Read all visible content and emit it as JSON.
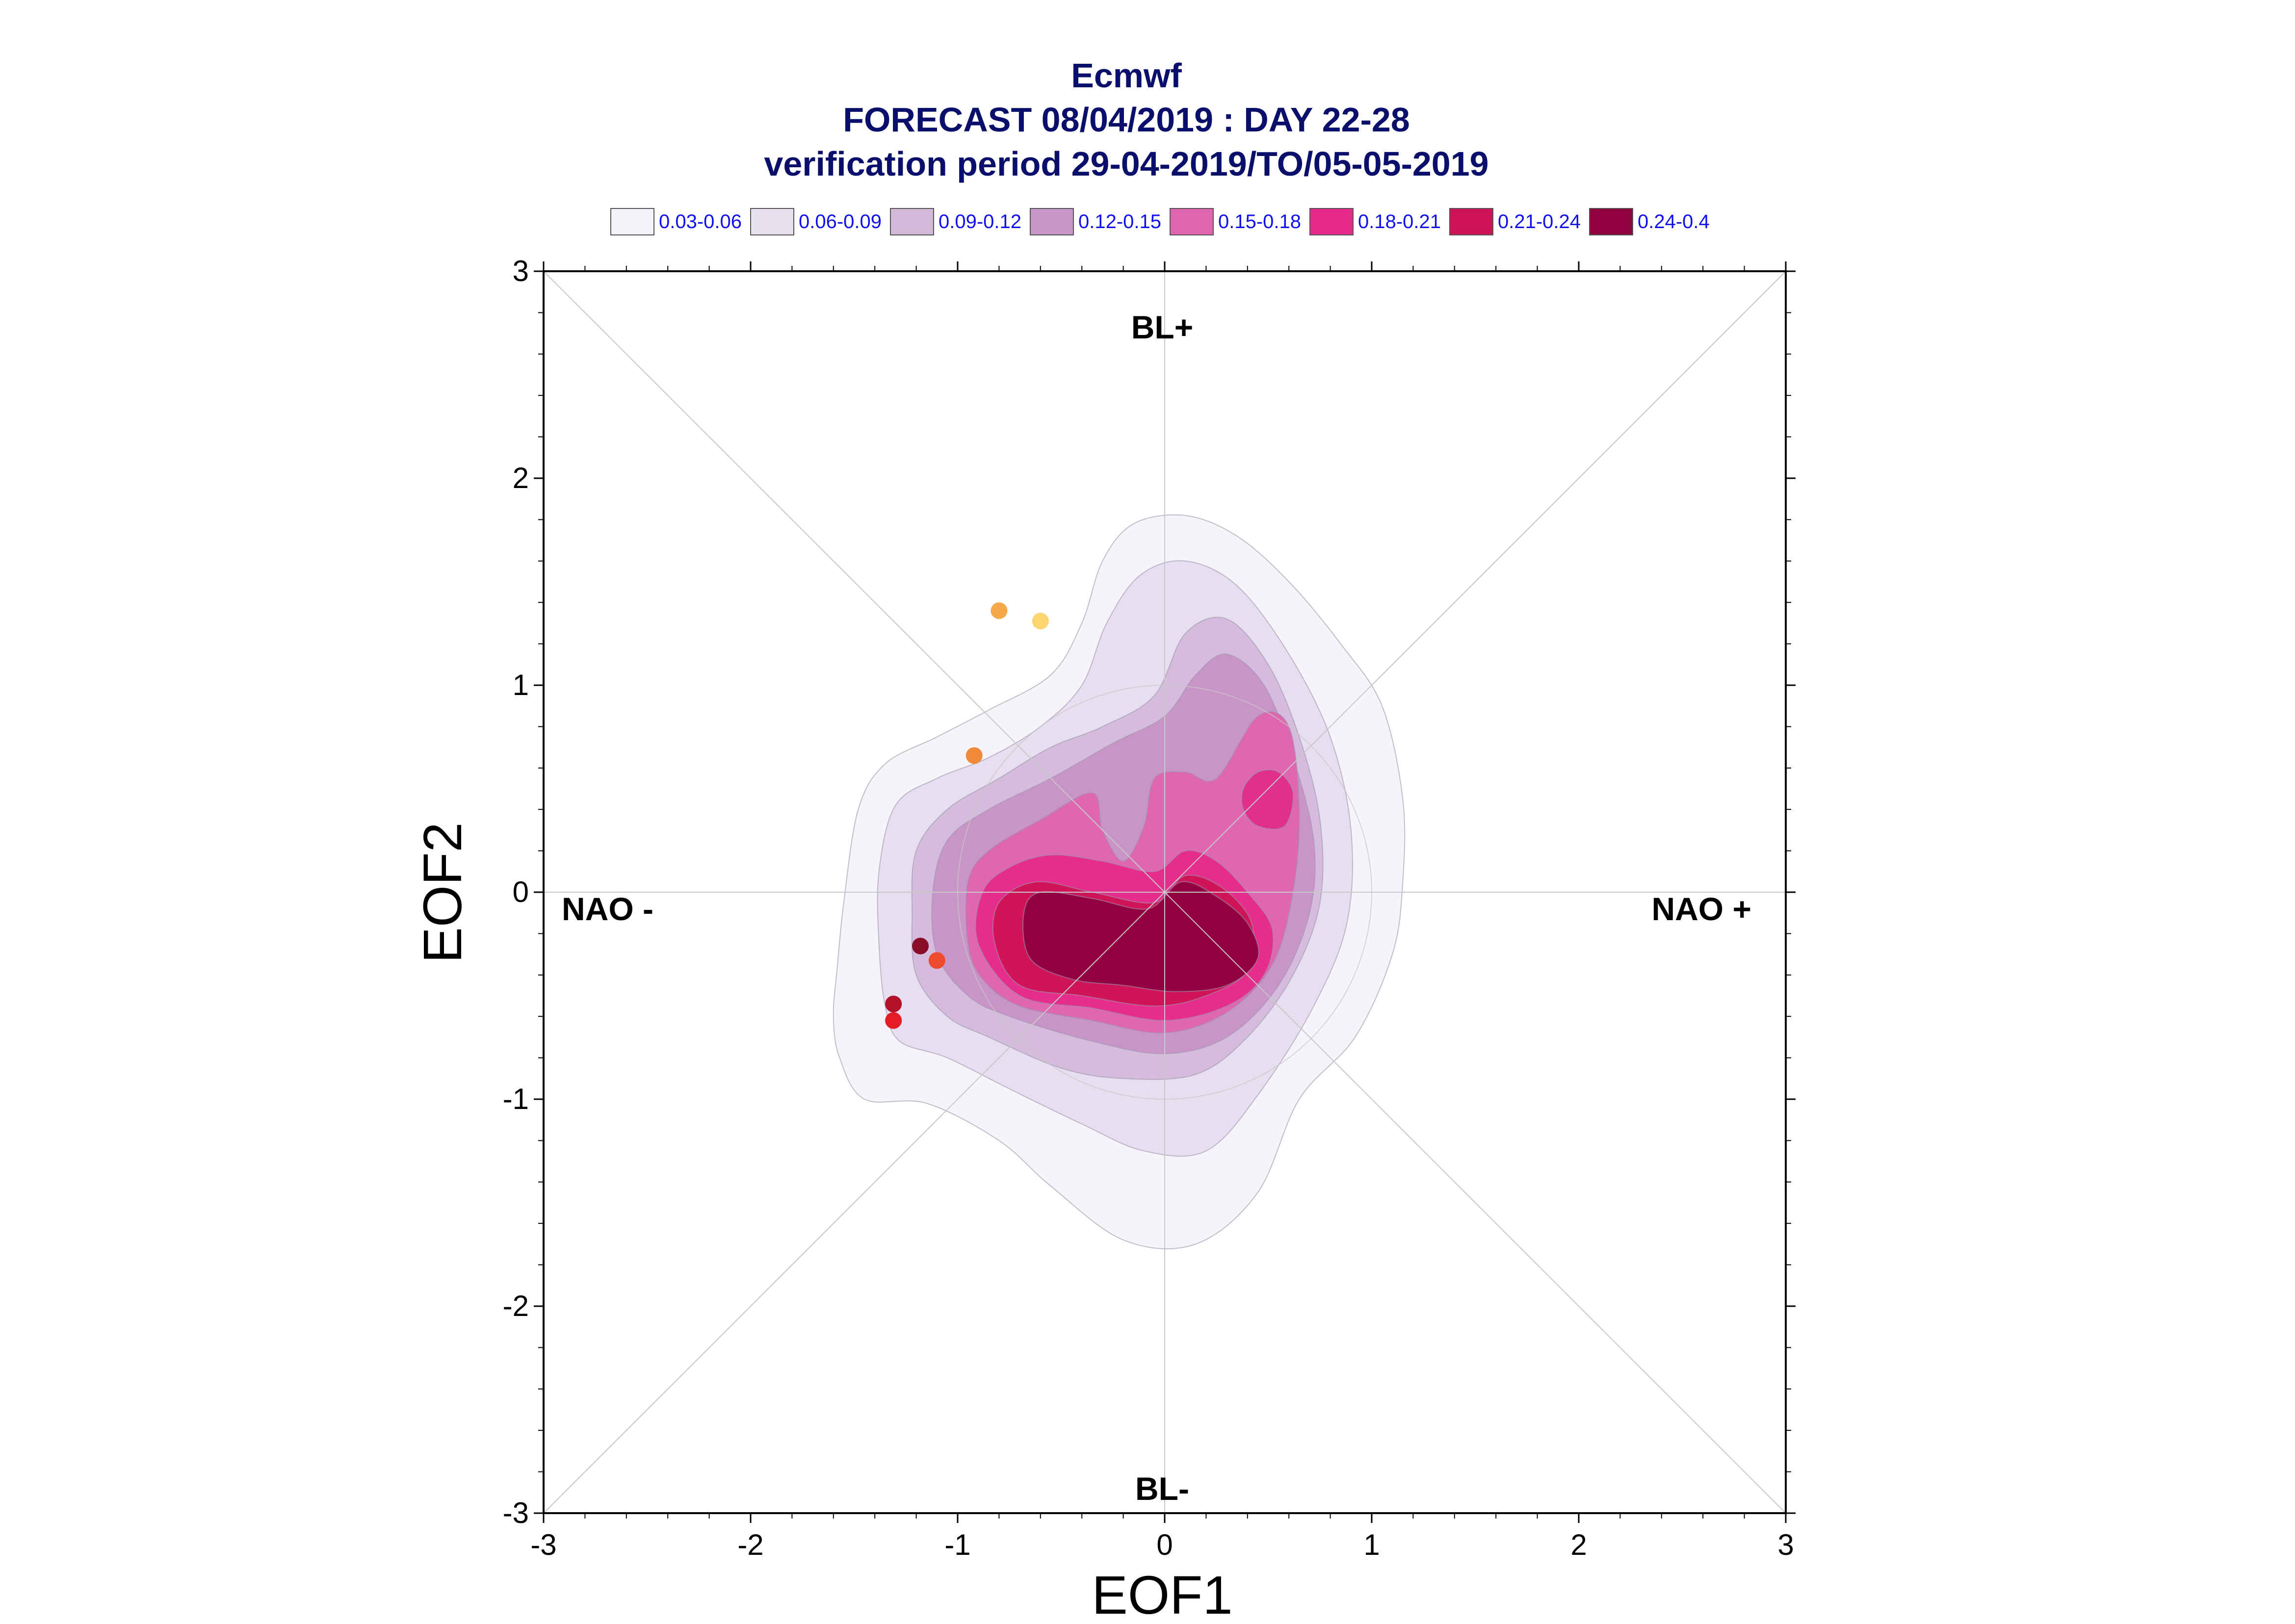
{
  "chart_data": {
    "type": "scatter",
    "title_lines": [
      "Ecmwf",
      "FORECAST 08/04/2019 : DAY 22-28",
      "verification period 29-04-2019/TO/05-05-2019"
    ],
    "xlabel": "EOF1",
    "ylabel": "EOF2",
    "xlim": [
      -3,
      3
    ],
    "ylim": [
      -3,
      3
    ],
    "x_ticks": [
      "-3",
      "-2",
      "-1",
      "0",
      "1",
      "2",
      "3"
    ],
    "y_ticks": [
      "-3",
      "-2",
      "-1",
      "0",
      "1",
      "2",
      "3"
    ],
    "grid": "center cross and diagonals",
    "regime_labels": {
      "top": "BL+",
      "bottom": "BL-",
      "left": "NAO -",
      "right": "NAO +"
    },
    "legend": {
      "placement": "top, above plot",
      "entries": [
        {
          "label": "0.03-0.06",
          "color": "#f7f4f9"
        },
        {
          "label": "0.06-0.09",
          "color": "#e7e1ef"
        },
        {
          "label": "0.09-0.12",
          "color": "#d4b9da"
        },
        {
          "label": "0.12-0.15",
          "color": "#c994c7"
        },
        {
          "label": "0.15-0.18",
          "color": "#df65b0"
        },
        {
          "label": "0.18-0.21",
          "color": "#e7298a"
        },
        {
          "label": "0.21-0.24",
          "color": "#ce1256"
        },
        {
          "label": "0.24-0.4",
          "color": "#91003f"
        }
      ]
    },
    "density_contours": [
      {
        "level": "0.03-0.06",
        "color": "#f6f3f9",
        "points": [
          [
            -1.57,
            -0.8
          ],
          [
            -1.6,
            -0.6
          ],
          [
            -1.58,
            -0.35
          ],
          [
            -1.55,
            -0.05
          ],
          [
            -1.48,
            0.4
          ],
          [
            -1.35,
            0.62
          ],
          [
            -1.1,
            0.75
          ],
          [
            -0.85,
            0.88
          ],
          [
            -0.55,
            1.05
          ],
          [
            -0.4,
            1.3
          ],
          [
            -0.3,
            1.6
          ],
          [
            -0.15,
            1.78
          ],
          [
            0.1,
            1.82
          ],
          [
            0.35,
            1.72
          ],
          [
            0.6,
            1.5
          ],
          [
            0.85,
            1.2
          ],
          [
            1.05,
            0.9
          ],
          [
            1.15,
            0.45
          ],
          [
            1.15,
            0.05
          ],
          [
            1.1,
            -0.3
          ],
          [
            0.92,
            -0.7
          ],
          [
            0.65,
            -1.0
          ],
          [
            0.45,
            -1.45
          ],
          [
            0.15,
            -1.7
          ],
          [
            -0.2,
            -1.68
          ],
          [
            -0.55,
            -1.42
          ],
          [
            -0.8,
            -1.2
          ],
          [
            -1.15,
            -1.02
          ],
          [
            -1.45,
            -1.0
          ]
        ]
      },
      {
        "level": "0.06-0.09",
        "color": "#e6dff0",
        "points": [
          [
            -1.35,
            -0.55
          ],
          [
            -1.38,
            -0.25
          ],
          [
            -1.38,
            0.1
          ],
          [
            -1.3,
            0.42
          ],
          [
            -1.1,
            0.55
          ],
          [
            -0.85,
            0.65
          ],
          [
            -0.6,
            0.8
          ],
          [
            -0.4,
            1.0
          ],
          [
            -0.28,
            1.3
          ],
          [
            -0.12,
            1.53
          ],
          [
            0.1,
            1.6
          ],
          [
            0.35,
            1.48
          ],
          [
            0.6,
            1.15
          ],
          [
            0.8,
            0.75
          ],
          [
            0.9,
            0.3
          ],
          [
            0.88,
            -0.15
          ],
          [
            0.72,
            -0.55
          ],
          [
            0.45,
            -0.98
          ],
          [
            0.2,
            -1.25
          ],
          [
            -0.1,
            -1.25
          ],
          [
            -0.4,
            -1.12
          ],
          [
            -0.75,
            -0.95
          ],
          [
            -1.05,
            -0.8
          ],
          [
            -1.28,
            -0.72
          ]
        ]
      },
      {
        "level": "0.09-0.12",
        "color": "#d5bcdc",
        "points": [
          [
            -1.2,
            -0.4
          ],
          [
            -1.22,
            -0.1
          ],
          [
            -1.2,
            0.2
          ],
          [
            -1.05,
            0.4
          ],
          [
            -0.8,
            0.55
          ],
          [
            -0.55,
            0.7
          ],
          [
            -0.3,
            0.8
          ],
          [
            -0.05,
            0.95
          ],
          [
            0.1,
            1.25
          ],
          [
            0.3,
            1.32
          ],
          [
            0.5,
            1.1
          ],
          [
            0.65,
            0.75
          ],
          [
            0.75,
            0.35
          ],
          [
            0.75,
            -0.05
          ],
          [
            0.62,
            -0.4
          ],
          [
            0.4,
            -0.7
          ],
          [
            0.15,
            -0.88
          ],
          [
            -0.2,
            -0.9
          ],
          [
            -0.5,
            -0.85
          ],
          [
            -0.85,
            -0.7
          ],
          [
            -1.05,
            -0.6
          ]
        ]
      },
      {
        "level": "0.12-0.15",
        "color": "#c995c8",
        "points": [
          [
            -1.1,
            -0.3
          ],
          [
            -1.12,
            0.0
          ],
          [
            -1.05,
            0.25
          ],
          [
            -0.85,
            0.4
          ],
          [
            -0.55,
            0.55
          ],
          [
            -0.25,
            0.72
          ],
          [
            0.0,
            0.85
          ],
          [
            0.15,
            1.05
          ],
          [
            0.3,
            1.15
          ],
          [
            0.48,
            1.0
          ],
          [
            0.62,
            0.65
          ],
          [
            0.72,
            0.25
          ],
          [
            0.7,
            -0.1
          ],
          [
            0.55,
            -0.45
          ],
          [
            0.3,
            -0.7
          ],
          [
            0.0,
            -0.78
          ],
          [
            -0.35,
            -0.72
          ],
          [
            -0.75,
            -0.6
          ],
          [
            -0.95,
            -0.5
          ]
        ]
      },
      {
        "level": "0.15-0.18",
        "color": "#df67b1",
        "points": [
          [
            -0.95,
            -0.25
          ],
          [
            -0.95,
            0.05
          ],
          [
            -0.85,
            0.2
          ],
          [
            -0.6,
            0.35
          ],
          [
            -0.35,
            0.48
          ],
          [
            -0.3,
            0.3
          ],
          [
            -0.2,
            0.15
          ],
          [
            -0.1,
            0.32
          ],
          [
            -0.05,
            0.55
          ],
          [
            0.1,
            0.58
          ],
          [
            0.25,
            0.55
          ],
          [
            0.45,
            0.85
          ],
          [
            0.6,
            0.8
          ],
          [
            0.65,
            0.4
          ],
          [
            0.62,
            0.0
          ],
          [
            0.52,
            -0.35
          ],
          [
            0.3,
            -0.58
          ],
          [
            0.0,
            -0.68
          ],
          [
            -0.35,
            -0.62
          ],
          [
            -0.7,
            -0.55
          ],
          [
            -0.88,
            -0.42
          ]
        ]
      },
      {
        "level": "0.18-0.21",
        "color": "#e72d8c",
        "points": [
          [
            -0.9,
            -0.25
          ],
          [
            -0.88,
            0.0
          ],
          [
            -0.75,
            0.12
          ],
          [
            -0.55,
            0.18
          ],
          [
            -0.3,
            0.15
          ],
          [
            -0.05,
            0.1
          ],
          [
            0.1,
            0.2
          ],
          [
            0.25,
            0.15
          ],
          [
            0.4,
            0.0
          ],
          [
            0.52,
            -0.18
          ],
          [
            0.48,
            -0.4
          ],
          [
            0.3,
            -0.55
          ],
          [
            0.0,
            -0.62
          ],
          [
            -0.35,
            -0.56
          ],
          [
            -0.7,
            -0.5
          ]
        ]
      },
      {
        "level": "0.21-0.24",
        "color": "#cf1457",
        "points": [
          [
            -0.82,
            -0.25
          ],
          [
            -0.8,
            -0.05
          ],
          [
            -0.62,
            0.05
          ],
          [
            -0.35,
            0.0
          ],
          [
            -0.05,
            -0.05
          ],
          [
            0.1,
            0.08
          ],
          [
            0.28,
            0.02
          ],
          [
            0.42,
            -0.15
          ],
          [
            0.4,
            -0.38
          ],
          [
            0.2,
            -0.5
          ],
          [
            -0.05,
            -0.55
          ],
          [
            -0.4,
            -0.5
          ],
          [
            -0.7,
            -0.45
          ]
        ]
      },
      {
        "level": "0.24-0.4",
        "color": "#930041",
        "points": [
          [
            -0.68,
            -0.1
          ],
          [
            -0.6,
            0.0
          ],
          [
            -0.35,
            -0.03
          ],
          [
            -0.08,
            -0.08
          ],
          [
            0.08,
            0.05
          ],
          [
            0.25,
            -0.02
          ],
          [
            0.4,
            -0.15
          ],
          [
            0.45,
            -0.32
          ],
          [
            0.3,
            -0.45
          ],
          [
            0.05,
            -0.48
          ],
          [
            -0.2,
            -0.45
          ],
          [
            -0.45,
            -0.42
          ],
          [
            -0.65,
            -0.32
          ]
        ]
      },
      {
        "level": "0.15-0.18",
        "color": "#e02f8d",
        "points": [
          [
            0.38,
            0.5
          ],
          [
            0.45,
            0.58
          ],
          [
            0.55,
            0.58
          ],
          [
            0.62,
            0.48
          ],
          [
            0.58,
            0.32
          ],
          [
            0.45,
            0.32
          ],
          [
            0.38,
            0.4
          ]
        ]
      }
    ],
    "points": [
      {
        "x": -0.8,
        "y": 1.36,
        "color": "#f5a94a"
      },
      {
        "x": -0.6,
        "y": 1.31,
        "color": "#fcd570"
      },
      {
        "x": -0.92,
        "y": 0.66,
        "color": "#f08a3a"
      },
      {
        "x": -1.18,
        "y": -0.26,
        "color": "#8a0d2a"
      },
      {
        "x": -1.1,
        "y": -0.33,
        "color": "#ee4a30"
      },
      {
        "x": -1.31,
        "y": -0.54,
        "color": "#b3102a"
      },
      {
        "x": -1.31,
        "y": -0.62,
        "color": "#e51c25"
      }
    ]
  }
}
